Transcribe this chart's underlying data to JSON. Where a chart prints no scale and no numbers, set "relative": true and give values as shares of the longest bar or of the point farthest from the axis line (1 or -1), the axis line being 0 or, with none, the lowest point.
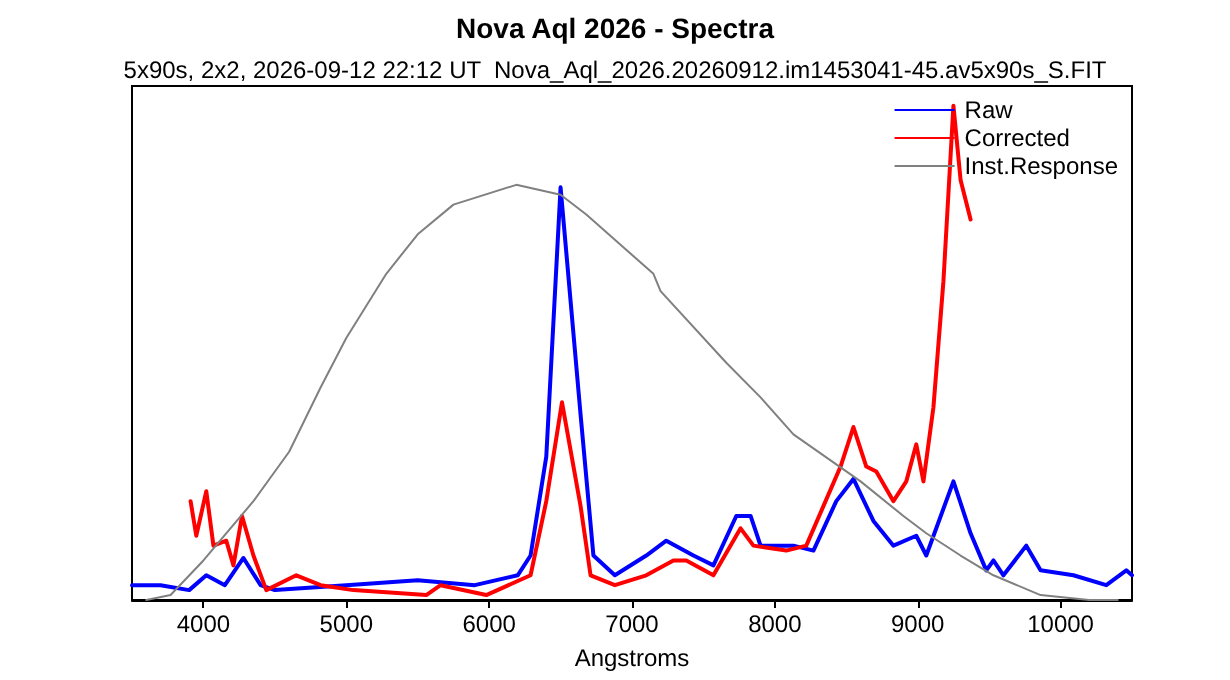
{
  "chart_data": {
    "type": "line",
    "title": "Nova Aql 2026 - Spectra",
    "subtitle": "5x90s, 2x2, 2026-09-12 22:12 UT  Nova_Aql_2026.20260912.im1453041-45.av5x90s_S.FIT",
    "xlabel": "Angstroms",
    "relative": true,
    "xlim": [
      3500,
      10500
    ],
    "xticks": [
      4000,
      5000,
      6000,
      7000,
      8000,
      9000,
      10000
    ],
    "grid": false,
    "legend": "top right",
    "marker": "none",
    "line_style": "solid",
    "series": [
      {
        "name": "Raw",
        "color": "#0000ff",
        "x": [
          3500,
          3700,
          3900,
          4020,
          4150,
          4280,
          4400,
          4500,
          5000,
          5500,
          5900,
          6200,
          6290,
          6400,
          6500,
          6640,
          6730,
          6880,
          7100,
          7240,
          7430,
          7570,
          7730,
          7830,
          7900,
          8130,
          8270,
          8430,
          8550,
          8690,
          8830,
          8990,
          9060,
          9250,
          9370,
          9480,
          9530,
          9600,
          9760,
          9860,
          10090,
          10320,
          10460,
          10500
        ],
        "values": [
          0.03,
          0.03,
          0.02,
          0.05,
          0.03,
          0.085,
          0.03,
          0.02,
          0.03,
          0.04,
          0.03,
          0.05,
          0.09,
          0.29,
          0.835,
          0.375,
          0.09,
          0.05,
          0.09,
          0.12,
          0.09,
          0.07,
          0.17,
          0.17,
          0.11,
          0.11,
          0.1,
          0.2,
          0.245,
          0.16,
          0.11,
          0.13,
          0.09,
          0.24,
          0.135,
          0.06,
          0.08,
          0.05,
          0.11,
          0.06,
          0.05,
          0.03,
          0.06,
          0.05
        ]
      },
      {
        "name": "Corrected",
        "color": "#ff0000",
        "x": [
          3910,
          3950,
          4020,
          4070,
          4160,
          4210,
          4270,
          4350,
          4440,
          4650,
          4820,
          5050,
          5560,
          5660,
          5980,
          6290,
          6400,
          6510,
          6640,
          6710,
          6880,
          7100,
          7290,
          7380,
          7570,
          7760,
          7850,
          8080,
          8220,
          8340,
          8460,
          8550,
          8640,
          8710,
          8830,
          8920,
          8990,
          9040,
          9110,
          9180,
          9250,
          9300,
          9370
        ],
        "values": [
          0.2,
          0.13,
          0.22,
          0.11,
          0.12,
          0.07,
          0.17,
          0.09,
          0.02,
          0.05,
          0.03,
          0.02,
          0.01,
          0.03,
          0.01,
          0.05,
          0.2,
          0.4,
          0.19,
          0.05,
          0.03,
          0.05,
          0.08,
          0.08,
          0.05,
          0.145,
          0.11,
          0.1,
          0.11,
          0.19,
          0.27,
          0.35,
          0.27,
          0.26,
          0.2,
          0.24,
          0.315,
          0.24,
          0.39,
          0.645,
          1.0,
          0.85,
          0.77
        ]
      },
      {
        "name": "Inst.Response",
        "color": "#808080",
        "x": [
          3600,
          3770,
          4000,
          4350,
          4600,
          4820,
          5000,
          5280,
          5500,
          5750,
          6190,
          6500,
          6680,
          7150,
          7200,
          7660,
          7900,
          8130,
          8600,
          8900,
          9060,
          9300,
          9530,
          9860,
          10200,
          10400
        ],
        "values": [
          0.0,
          0.01,
          0.08,
          0.2,
          0.3,
          0.43,
          0.53,
          0.66,
          0.74,
          0.8,
          0.84,
          0.82,
          0.78,
          0.66,
          0.625,
          0.48,
          0.41,
          0.335,
          0.24,
          0.17,
          0.135,
          0.09,
          0.05,
          0.01,
          0.0,
          0.0
        ]
      }
    ]
  }
}
